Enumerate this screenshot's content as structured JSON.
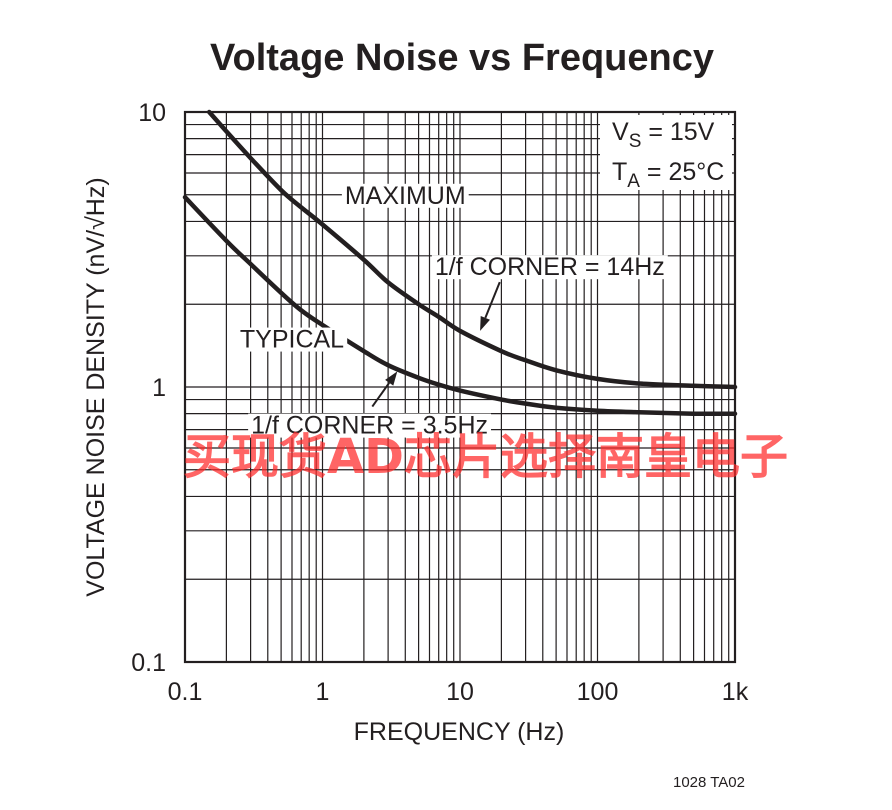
{
  "chart_data": {
    "type": "line",
    "title": "Voltage Noise vs Frequency",
    "xlabel": "FREQUENCY (Hz)",
    "ylabel": "VOLTAGE NOISE DENSITY (nV/√Hz)",
    "x_scale": "log",
    "y_scale": "log",
    "xlim": [
      0.1,
      1000
    ],
    "ylim": [
      0.1,
      10
    ],
    "x_ticks": [
      0.1,
      1,
      10,
      100,
      1000
    ],
    "x_tick_labels": [
      "0.1",
      "1",
      "10",
      "100",
      "1k"
    ],
    "y_ticks": [
      0.1,
      1,
      10
    ],
    "y_tick_labels": [
      "0.1",
      "1",
      "10"
    ],
    "grid": true,
    "conditions": [
      "VS = 15V",
      "TA = 25°C"
    ],
    "series": [
      {
        "name": "MAXIMUM",
        "x": [
          0.15,
          0.2,
          0.3,
          0.5,
          0.7,
          1,
          2,
          3,
          5,
          7,
          10,
          20,
          30,
          50,
          100,
          200,
          500,
          1000
        ],
        "y": [
          10,
          8.5,
          6.8,
          5.2,
          4.5,
          3.9,
          2.9,
          2.4,
          2.0,
          1.8,
          1.6,
          1.35,
          1.25,
          1.15,
          1.07,
          1.03,
          1.01,
          1.0
        ]
      },
      {
        "name": "TYPICAL",
        "x": [
          0.1,
          0.2,
          0.3,
          0.5,
          0.7,
          1,
          2,
          3,
          5,
          7,
          10,
          20,
          30,
          50,
          100,
          200,
          500,
          1000
        ],
        "y": [
          4.9,
          3.4,
          2.8,
          2.2,
          1.9,
          1.68,
          1.35,
          1.2,
          1.08,
          1.02,
          0.97,
          0.9,
          0.87,
          0.84,
          0.82,
          0.81,
          0.8,
          0.8
        ]
      }
    ],
    "annotations": [
      {
        "text": "MAXIMUM",
        "x": 4,
        "y": 5
      },
      {
        "text": "TYPICAL",
        "x": 0.6,
        "y": 1.5
      },
      {
        "text": "1/f CORNER = 14Hz",
        "x": 45,
        "y": 2.75,
        "arrow_to": [
          14,
          1.6
        ]
      },
      {
        "text": "1/f CORNER = 3.5Hz",
        "x": 2.2,
        "y": 0.73,
        "arrow_to": [
          3.5,
          1.14
        ]
      }
    ],
    "figure_code": "1028 TA02",
    "watermark": "买现货AD芯片选择南皇电子",
    "series_color": "#231f20",
    "watermark_color": "#ff2a2a"
  }
}
